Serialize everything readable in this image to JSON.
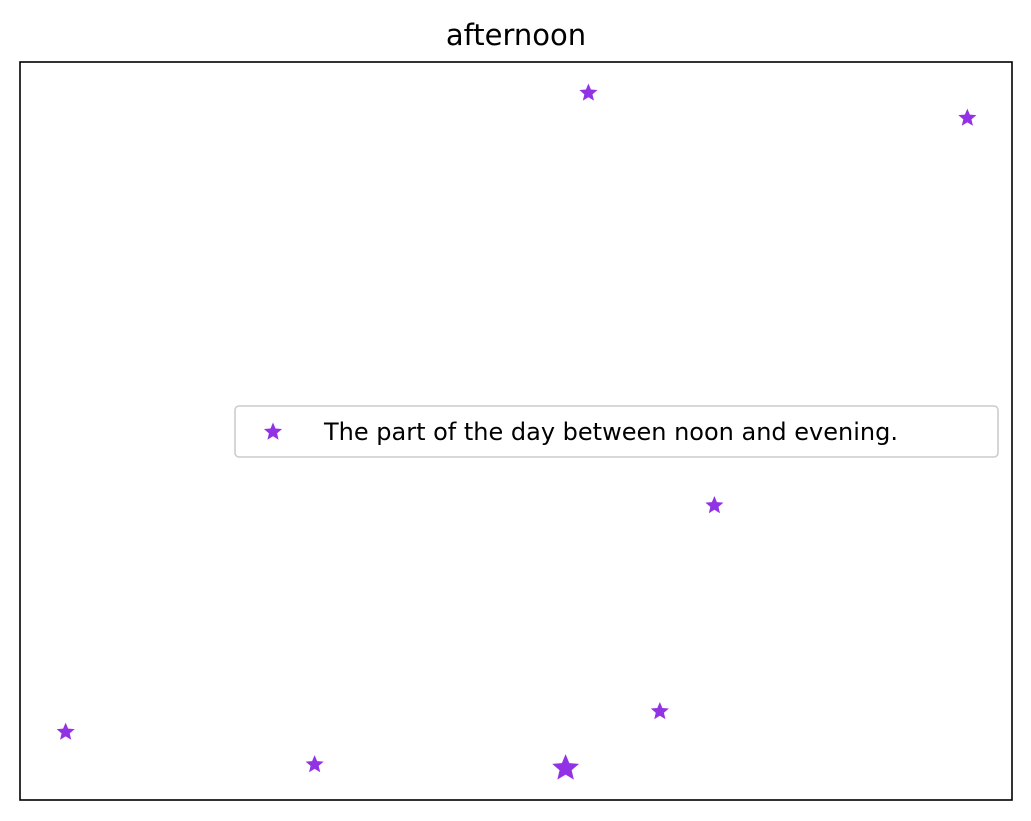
{
  "chart_data": {
    "type": "scatter",
    "title": "afternoon",
    "xlabel": "",
    "ylabel": "",
    "xlim": [
      0,
      100
    ],
    "ylim": [
      0,
      100
    ],
    "grid": false,
    "axes_ticks": false,
    "legend_placement": "center-right",
    "series": [
      {
        "name": "The part of the day between noon and evening.",
        "color": "#7f0ee0",
        "marker": "star",
        "x": [
          4.6,
          29.7,
          55.0,
          57.3,
          64.5,
          70.0,
          95.5
        ],
        "y": [
          9.2,
          4.8,
          4.3,
          95.8,
          12.0,
          39.9,
          92.4
        ],
        "size": [
          1,
          1,
          2.2,
          1,
          1,
          1,
          1
        ]
      }
    ]
  }
}
